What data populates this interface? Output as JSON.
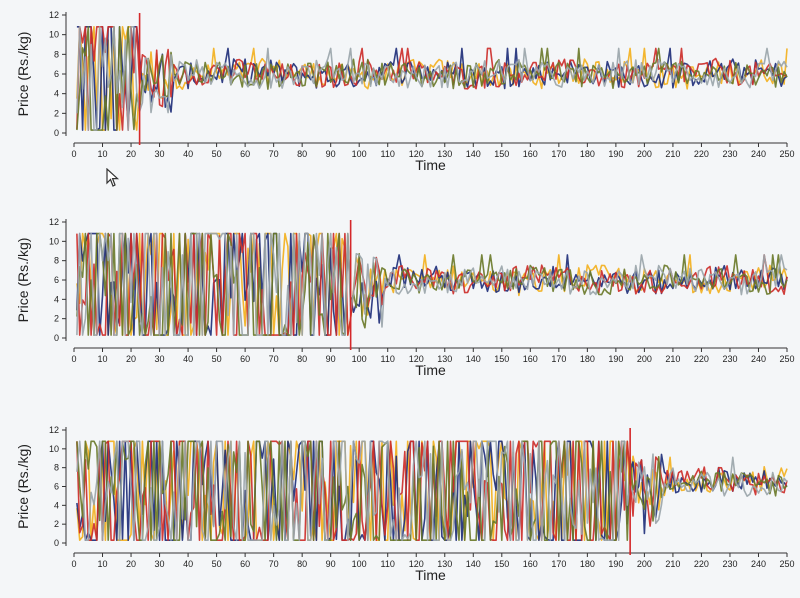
{
  "chart_data": [
    {
      "type": "line",
      "xlabel": "Time",
      "ylabel": "Price (Rs./kg)",
      "xlim": [
        0,
        250
      ],
      "ylim": [
        0,
        12
      ],
      "x_ticks": [
        0,
        10,
        20,
        30,
        40,
        50,
        60,
        70,
        80,
        90,
        100,
        110,
        120,
        130,
        140,
        150,
        160,
        170,
        180,
        190,
        200,
        210,
        220,
        230,
        240,
        250
      ],
      "y_ticks": [
        0,
        2,
        4,
        6,
        8,
        10,
        12
      ],
      "vline_x": 23,
      "converged_level": 6,
      "series_count": 5
    },
    {
      "type": "line",
      "xlabel": "Time",
      "ylabel": "Price (Rs./kg)",
      "xlim": [
        0,
        250
      ],
      "ylim": [
        0,
        12
      ],
      "x_ticks": [
        0,
        10,
        20,
        30,
        40,
        50,
        60,
        70,
        80,
        90,
        100,
        110,
        120,
        130,
        140,
        150,
        160,
        170,
        180,
        190,
        200,
        210,
        220,
        230,
        240,
        250
      ],
      "y_ticks": [
        0,
        2,
        4,
        6,
        8,
        10,
        12
      ],
      "vline_x": 97,
      "converged_level": 6,
      "series_count": 5
    },
    {
      "type": "line",
      "xlabel": "Time",
      "ylabel": "Price (Rs./kg)",
      "xlim": [
        0,
        250
      ],
      "ylim": [
        0,
        12
      ],
      "x_ticks": [
        0,
        10,
        20,
        30,
        40,
        50,
        60,
        70,
        80,
        90,
        100,
        110,
        120,
        130,
        140,
        150,
        160,
        170,
        180,
        190,
        200,
        210,
        220,
        230,
        240,
        250
      ],
      "y_ticks": [
        0,
        2,
        4,
        6,
        8,
        10,
        12
      ],
      "vline_x": 195,
      "converged_level": 6.5,
      "series_count": 5
    }
  ],
  "series_colors": [
    "#f2b01e",
    "#1f2f7a",
    "#cc2e2a",
    "#6a7a2a",
    "#9aa5aa"
  ],
  "vline_color": "#d4282a",
  "icons": {
    "cursor": "mouse-pointer-icon"
  }
}
